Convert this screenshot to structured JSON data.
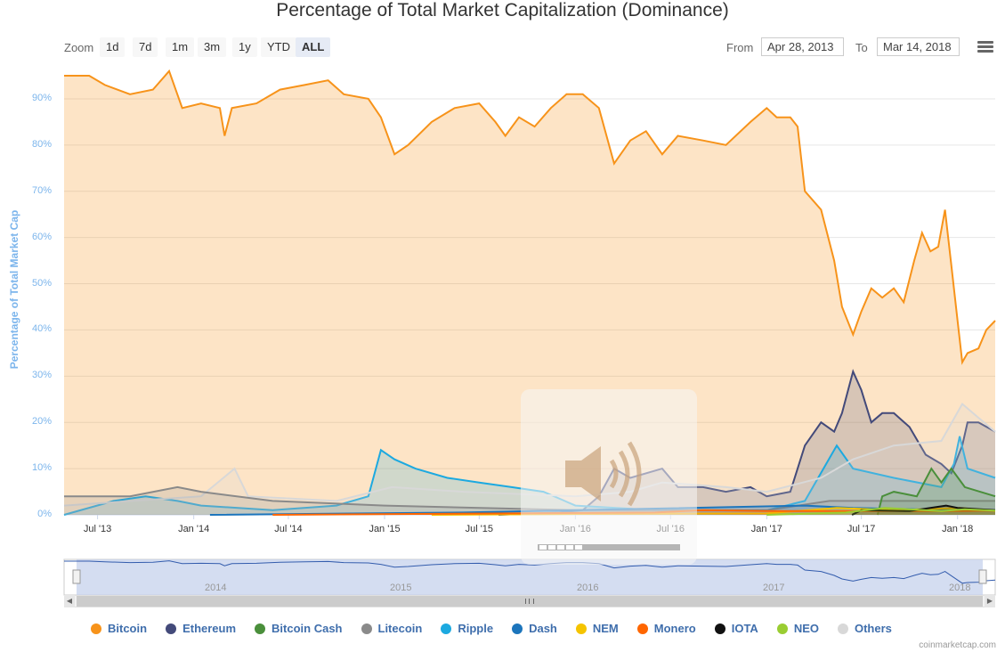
{
  "title": "Percentage of Total Market Capitalization (Dominance)",
  "range_selector": {
    "zoom_label": "Zoom",
    "buttons": [
      "1d",
      "7d",
      "1m",
      "3m",
      "1y",
      "YTD",
      "ALL"
    ],
    "active": "ALL",
    "from_label": "From",
    "from_value": "Apr 28, 2013",
    "to_label": "To",
    "to_value": "Mar 14, 2018"
  },
  "credit": "coinmarketcap.com",
  "navigator": {
    "labels": [
      "2014",
      "2015",
      "2016",
      "2017",
      "2018"
    ]
  },
  "colors": {
    "Bitcoin": "#f7931a",
    "Ethereum": "#434a7a",
    "Bitcoin Cash": "#4a8f3b",
    "Litecoin": "#8a8a8a",
    "Ripple": "#1ca9e0",
    "Dash": "#1c75bc",
    "NEM": "#f5c400",
    "Monero": "#ff6600",
    "IOTA": "#111111",
    "NEO": "#9acd32",
    "Others": "#d8d8d8"
  },
  "chart_data": {
    "type": "area",
    "title": "Percentage of Total Market Capitalization (Dominance)",
    "ylabel": "Percentage of Total Market Cap",
    "xlabel": "",
    "ylim": [
      0,
      95
    ],
    "y_ticks": [
      0,
      10,
      20,
      30,
      40,
      50,
      60,
      70,
      80,
      90
    ],
    "y_tick_labels": [
      "0%",
      "10%",
      "20%",
      "30%",
      "40%",
      "50%",
      "60%",
      "70%",
      "80%",
      "90%"
    ],
    "x_range": [
      "2013-04-28",
      "2018-03-14"
    ],
    "x_ticks": [
      "2013-07-01",
      "2014-01-01",
      "2014-07-01",
      "2015-01-01",
      "2015-07-01",
      "2016-01-01",
      "2016-07-01",
      "2017-01-01",
      "2017-07-01",
      "2018-01-01"
    ],
    "x_tick_labels": [
      "Jul '13",
      "Jan '14",
      "Jul '14",
      "Jan '15",
      "Jul '15",
      "Jan '16",
      "Jul '16",
      "Jan '17",
      "Jul '17",
      "Jan '18"
    ],
    "legend_position": "bottom",
    "grid": true,
    "series": [
      {
        "name": "Bitcoin",
        "points": [
          [
            "2013-04-28",
            95
          ],
          [
            "2013-06-15",
            95
          ],
          [
            "2013-07-15",
            93
          ],
          [
            "2013-09-01",
            91
          ],
          [
            "2013-10-15",
            92
          ],
          [
            "2013-11-15",
            96
          ],
          [
            "2013-12-10",
            88
          ],
          [
            "2014-01-15",
            89
          ],
          [
            "2014-02-20",
            88
          ],
          [
            "2014-03-01",
            82
          ],
          [
            "2014-03-15",
            88
          ],
          [
            "2014-05-01",
            89
          ],
          [
            "2014-06-15",
            92
          ],
          [
            "2014-08-01",
            93
          ],
          [
            "2014-09-15",
            94
          ],
          [
            "2014-10-15",
            91
          ],
          [
            "2014-12-01",
            90
          ],
          [
            "2014-12-25",
            86
          ],
          [
            "2015-01-20",
            78
          ],
          [
            "2015-02-15",
            80
          ],
          [
            "2015-04-01",
            85
          ],
          [
            "2015-05-15",
            88
          ],
          [
            "2015-07-01",
            89
          ],
          [
            "2015-08-01",
            85
          ],
          [
            "2015-08-20",
            82
          ],
          [
            "2015-09-15",
            86
          ],
          [
            "2015-10-15",
            84
          ],
          [
            "2015-11-15",
            88
          ],
          [
            "2015-12-15",
            91
          ],
          [
            "2016-01-15",
            91
          ],
          [
            "2016-02-15",
            88
          ],
          [
            "2016-03-15",
            76
          ],
          [
            "2016-04-15",
            81
          ],
          [
            "2016-05-15",
            83
          ],
          [
            "2016-06-15",
            78
          ],
          [
            "2016-07-15",
            82
          ],
          [
            "2016-09-01",
            81
          ],
          [
            "2016-10-15",
            80
          ],
          [
            "2016-12-01",
            85
          ],
          [
            "2017-01-01",
            88
          ],
          [
            "2017-01-20",
            86
          ],
          [
            "2017-02-15",
            86
          ],
          [
            "2017-03-01",
            84
          ],
          [
            "2017-03-15",
            70
          ],
          [
            "2017-04-15",
            66
          ],
          [
            "2017-05-10",
            55
          ],
          [
            "2017-05-25",
            45
          ],
          [
            "2017-06-15",
            39
          ],
          [
            "2017-07-01",
            44
          ],
          [
            "2017-07-20",
            49
          ],
          [
            "2017-08-10",
            47
          ],
          [
            "2017-09-01",
            49
          ],
          [
            "2017-09-20",
            46
          ],
          [
            "2017-10-10",
            55
          ],
          [
            "2017-10-25",
            61
          ],
          [
            "2017-11-10",
            57
          ],
          [
            "2017-11-25",
            58
          ],
          [
            "2017-12-08",
            66
          ],
          [
            "2017-12-20",
            54
          ],
          [
            "2018-01-01",
            42
          ],
          [
            "2018-01-10",
            33
          ],
          [
            "2018-01-20",
            35
          ],
          [
            "2018-02-10",
            36
          ],
          [
            "2018-02-25",
            40
          ],
          [
            "2018-03-14",
            42
          ]
        ]
      },
      {
        "name": "Ethereum",
        "points": [
          [
            "2015-08-07",
            0
          ],
          [
            "2015-12-01",
            0.5
          ],
          [
            "2016-01-15",
            1
          ],
          [
            "2016-02-15",
            4
          ],
          [
            "2016-03-15",
            10
          ],
          [
            "2016-04-15",
            8
          ],
          [
            "2016-06-15",
            10
          ],
          [
            "2016-07-15",
            6
          ],
          [
            "2016-09-01",
            6
          ],
          [
            "2016-10-15",
            5
          ],
          [
            "2016-12-01",
            6
          ],
          [
            "2017-01-01",
            4
          ],
          [
            "2017-02-15",
            5
          ],
          [
            "2017-03-15",
            15
          ],
          [
            "2017-04-15",
            20
          ],
          [
            "2017-05-10",
            18
          ],
          [
            "2017-05-25",
            22
          ],
          [
            "2017-06-15",
            31
          ],
          [
            "2017-07-01",
            27
          ],
          [
            "2017-07-20",
            20
          ],
          [
            "2017-08-10",
            22
          ],
          [
            "2017-09-01",
            22
          ],
          [
            "2017-10-01",
            19
          ],
          [
            "2017-11-01",
            13
          ],
          [
            "2017-12-01",
            11
          ],
          [
            "2017-12-20",
            9
          ],
          [
            "2018-01-10",
            15
          ],
          [
            "2018-01-20",
            20
          ],
          [
            "2018-02-10",
            20
          ],
          [
            "2018-03-14",
            18
          ]
        ]
      },
      {
        "name": "Ripple",
        "points": [
          [
            "2013-04-28",
            0
          ],
          [
            "2013-08-01",
            3
          ],
          [
            "2013-10-01",
            4
          ],
          [
            "2013-12-01",
            3
          ],
          [
            "2014-01-15",
            2
          ],
          [
            "2014-06-01",
            1
          ],
          [
            "2014-10-01",
            2
          ],
          [
            "2014-12-01",
            4
          ],
          [
            "2014-12-25",
            14
          ],
          [
            "2015-01-20",
            12
          ],
          [
            "2015-03-01",
            10
          ],
          [
            "2015-05-01",
            8
          ],
          [
            "2015-07-01",
            7
          ],
          [
            "2015-09-01",
            6
          ],
          [
            "2015-11-01",
            5
          ],
          [
            "2016-01-01",
            2
          ],
          [
            "2016-06-01",
            1
          ],
          [
            "2017-01-01",
            1
          ],
          [
            "2017-03-15",
            3
          ],
          [
            "2017-05-15",
            15
          ],
          [
            "2017-06-15",
            10
          ],
          [
            "2017-09-01",
            8
          ],
          [
            "2017-12-01",
            6
          ],
          [
            "2017-12-25",
            11
          ],
          [
            "2018-01-05",
            17
          ],
          [
            "2018-01-20",
            10
          ],
          [
            "2018-03-14",
            8
          ]
        ]
      },
      {
        "name": "Others",
        "points": [
          [
            "2013-04-28",
            2
          ],
          [
            "2014-01-15",
            4
          ],
          [
            "2014-03-20",
            10
          ],
          [
            "2014-04-15",
            4
          ],
          [
            "2014-10-01",
            3
          ],
          [
            "2015-01-15",
            6
          ],
          [
            "2015-06-01",
            5
          ],
          [
            "2016-01-01",
            4
          ],
          [
            "2016-04-15",
            5
          ],
          [
            "2016-06-15",
            7
          ],
          [
            "2016-10-15",
            6
          ],
          [
            "2017-01-01",
            5
          ],
          [
            "2017-04-15",
            8
          ],
          [
            "2017-06-15",
            12
          ],
          [
            "2017-09-01",
            15
          ],
          [
            "2017-12-01",
            16
          ],
          [
            "2018-01-10",
            24
          ],
          [
            "2018-02-10",
            21
          ],
          [
            "2018-03-14",
            18
          ]
        ]
      },
      {
        "name": "Litecoin",
        "points": [
          [
            "2013-04-28",
            4
          ],
          [
            "2013-09-01",
            4
          ],
          [
            "2013-12-01",
            6
          ],
          [
            "2014-01-15",
            5
          ],
          [
            "2014-06-01",
            3
          ],
          [
            "2015-01-01",
            2
          ],
          [
            "2016-01-01",
            1
          ],
          [
            "2017-01-01",
            1
          ],
          [
            "2017-05-01",
            3
          ],
          [
            "2017-09-01",
            3
          ],
          [
            "2017-12-15",
            3
          ],
          [
            "2018-03-14",
            3
          ]
        ]
      },
      {
        "name": "Bitcoin Cash",
        "points": [
          [
            "2017-08-01",
            0
          ],
          [
            "2017-08-10",
            4
          ],
          [
            "2017-09-01",
            5
          ],
          [
            "2017-10-15",
            4
          ],
          [
            "2017-11-12",
            10
          ],
          [
            "2017-12-01",
            7
          ],
          [
            "2017-12-20",
            10
          ],
          [
            "2018-01-15",
            6
          ],
          [
            "2018-03-14",
            4
          ]
        ]
      },
      {
        "name": "Dash",
        "points": [
          [
            "2014-02-01",
            0
          ],
          [
            "2015-06-01",
            0.5
          ],
          [
            "2016-01-01",
            1
          ],
          [
            "2017-03-15",
            2
          ],
          [
            "2017-06-15",
            1.5
          ],
          [
            "2018-01-01",
            1
          ],
          [
            "2018-03-14",
            1
          ]
        ]
      },
      {
        "name": "NEM",
        "points": [
          [
            "2015-04-01",
            0
          ],
          [
            "2016-01-01",
            0.2
          ],
          [
            "2017-01-01",
            0.3
          ],
          [
            "2017-05-15",
            1.5
          ],
          [
            "2017-09-01",
            1
          ],
          [
            "2018-01-05",
            1.5
          ],
          [
            "2018-03-14",
            0.8
          ]
        ]
      },
      {
        "name": "Monero",
        "points": [
          [
            "2014-06-01",
            0
          ],
          [
            "2016-06-01",
            0.5
          ],
          [
            "2016-09-01",
            1
          ],
          [
            "2017-01-01",
            0.8
          ],
          [
            "2017-06-01",
            0.8
          ],
          [
            "2018-01-01",
            0.8
          ],
          [
            "2018-03-14",
            0.9
          ]
        ]
      },
      {
        "name": "IOTA",
        "points": [
          [
            "2017-06-13",
            0
          ],
          [
            "2017-07-01",
            1
          ],
          [
            "2017-10-01",
            0.8
          ],
          [
            "2017-12-10",
            2
          ],
          [
            "2018-01-01",
            1.5
          ],
          [
            "2018-03-14",
            1
          ]
        ]
      },
      {
        "name": "NEO",
        "points": [
          [
            "2017-01-01",
            0
          ],
          [
            "2017-06-01",
            0.5
          ],
          [
            "2017-08-15",
            1.5
          ],
          [
            "2017-12-01",
            0.8
          ],
          [
            "2018-01-15",
            1.2
          ],
          [
            "2018-03-14",
            0.9
          ]
        ]
      }
    ]
  }
}
